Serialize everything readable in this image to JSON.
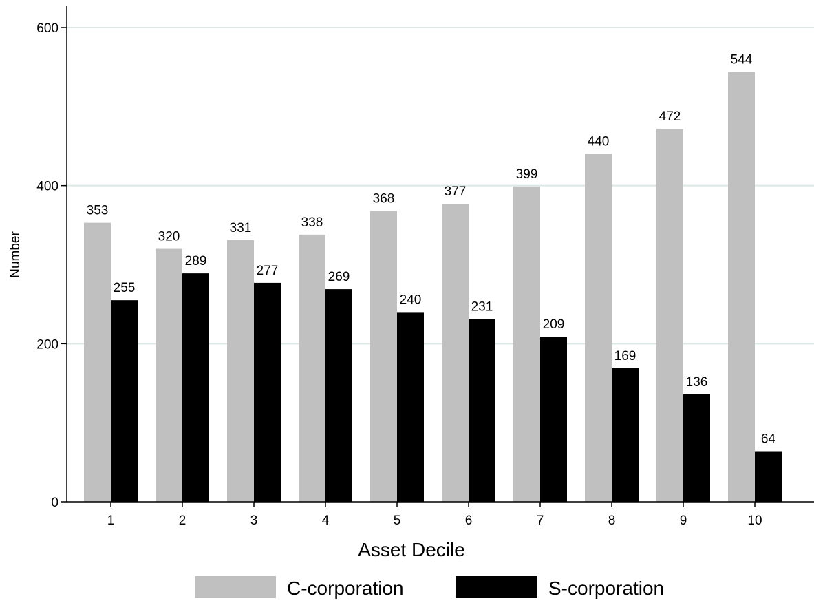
{
  "chart_data": {
    "type": "bar",
    "categories": [
      "1",
      "2",
      "3",
      "4",
      "5",
      "6",
      "7",
      "8",
      "9",
      "10"
    ],
    "series": [
      {
        "name": "C-corporation",
        "color": "#c0c0c0",
        "values": [
          353,
          320,
          331,
          338,
          368,
          377,
          399,
          440,
          472,
          544
        ]
      },
      {
        "name": "S-corporation",
        "color": "#000000",
        "values": [
          255,
          289,
          277,
          269,
          240,
          231,
          209,
          169,
          136,
          64
        ]
      }
    ],
    "data_labels": true,
    "xlabel": "Asset Decile",
    "ylabel": "Number",
    "ylim": [
      0,
      600
    ],
    "yticks": [
      0,
      200,
      400,
      600
    ],
    "ytick_labels": [
      "0",
      "200",
      "400",
      "600"
    ],
    "grid": "horizontal",
    "grid_color": "#dce8e6",
    "legend_position": "bottom"
  }
}
